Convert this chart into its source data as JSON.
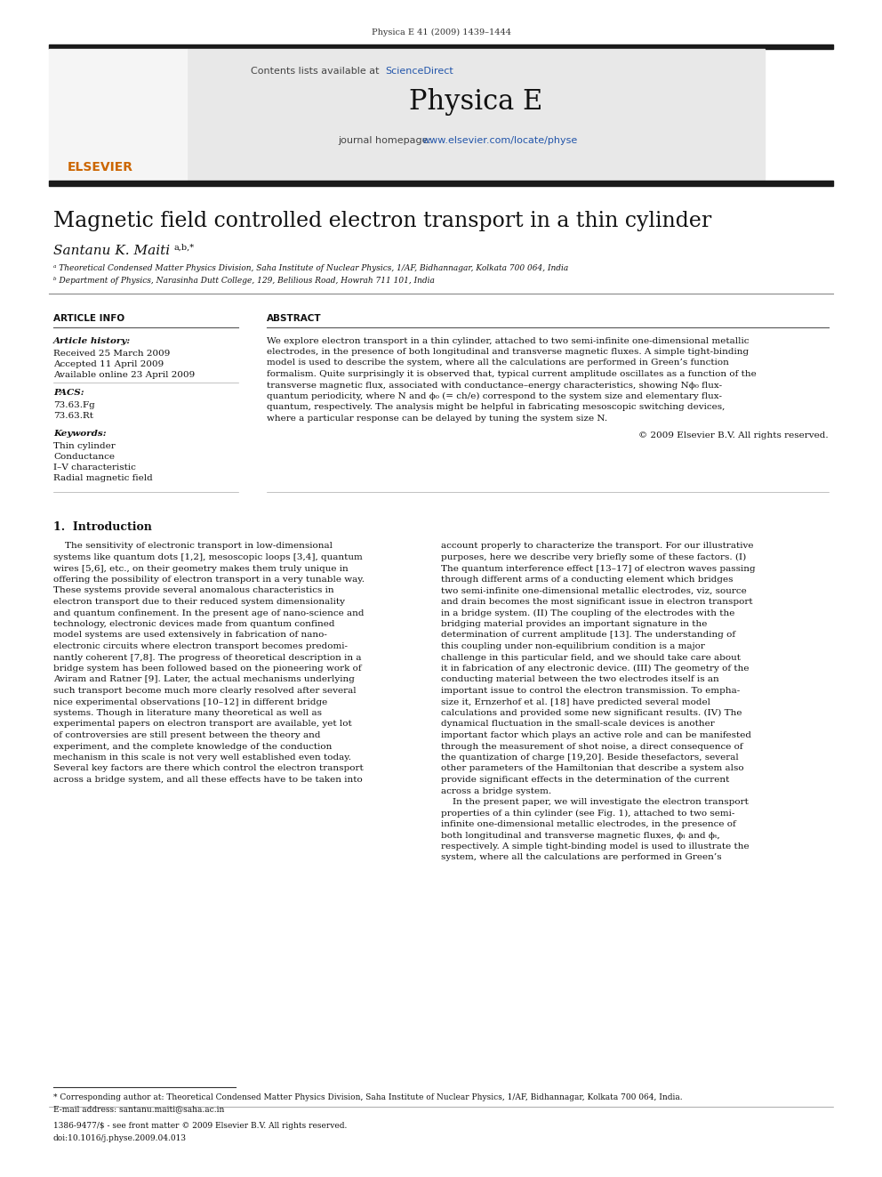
{
  "page_bg": "#ffffff",
  "header_journal": "Physica E 41 (2009) 1439–1444",
  "header_bar_color": "#1a1a1a",
  "banner_bg": "#e8e8e8",
  "banner_text1": "Contents lists available at ",
  "banner_link1": "ScienceDirect",
  "banner_link1_color": "#2255aa",
  "banner_journal_name": "Physica E",
  "banner_url_text": "journal homepage: ",
  "banner_url": "www.elsevier.com/locate/physe",
  "banner_url_color": "#2255aa",
  "title": "Magnetic field controlled electron transport in a thin cylinder",
  "author": "Santanu K. Maiti",
  "author_super": "a,b,*",
  "affil_a": "ᵃ Theoretical Condensed Matter Physics Division, Saha Institute of Nuclear Physics, 1/AF, Bidhannagar, Kolkata 700 064, India",
  "affil_b": "ᵇ Department of Physics, Narasinha Dutt College, 129, Belilious Road, Howrah 711 101, India",
  "section_article_info": "ARTICLE INFO",
  "article_history_label": "Article history:",
  "received": "Received 25 March 2009",
  "accepted": "Accepted 11 April 2009",
  "available": "Available online 23 April 2009",
  "pacs_label": "PACS:",
  "pacs1": "73.63.Fg",
  "pacs2": "73.63.Rt",
  "keywords_label": "Keywords:",
  "kw1": "Thin cylinder",
  "kw2": "Conductance",
  "kw3": "I–V characteristic",
  "kw4": "Radial magnetic field",
  "section_abstract": "ABSTRACT",
  "copyright": "© 2009 Elsevier B.V. All rights reserved.",
  "intro_heading": "1.  Introduction",
  "footnote_corresp": "* Corresponding author at: Theoretical Condensed Matter Physics Division, Saha Institute of Nuclear Physics, 1/AF, Bidhannagar, Kolkata 700 064, India.",
  "footnote_email": "E-mail address: santanu.maiti@saha.ac.in",
  "footnote_issn": "1386-9477/$ - see front matter © 2009 Elsevier B.V. All rights reserved.",
  "footnote_doi": "doi:10.1016/j.physe.2009.04.013",
  "abstract_lines": [
    "We explore electron transport in a thin cylinder, attached to two semi-infinite one-dimensional metallic",
    "electrodes, in the presence of both longitudinal and transverse magnetic fluxes. A simple tight-binding",
    "model is used to describe the system, where all the calculations are performed in Green’s function",
    "formalism. Quite surprisingly it is observed that, typical current amplitude oscillates as a function of the",
    "transverse magnetic flux, associated with conductance–energy characteristics, showing Nϕ₀ flux-",
    "quantum periodicity, where N and ϕ₀ (= ch/e) correspond to the system size and elementary flux-",
    "quantum, respectively. The analysis might be helpful in fabricating mesoscopic switching devices,",
    "where a particular response can be delayed by tuning the system size N."
  ],
  "intro_col1_lines": [
    "    The sensitivity of electronic transport in low-dimensional",
    "systems like quantum dots [1,2], mesoscopic loops [3,4], quantum",
    "wires [5,6], etc., on their geometry makes them truly unique in",
    "offering the possibility of electron transport in a very tunable way.",
    "These systems provide several anomalous characteristics in",
    "electron transport due to their reduced system dimensionality",
    "and quantum confinement. In the present age of nano-science and",
    "technology, electronic devices made from quantum confined",
    "model systems are used extensively in fabrication of nano-",
    "electronic circuits where electron transport becomes predomi-",
    "nantly coherent [7,8]. The progress of theoretical description in a",
    "bridge system has been followed based on the pioneering work of",
    "Aviram and Ratner [9]. Later, the actual mechanisms underlying",
    "such transport become much more clearly resolved after several",
    "nice experimental observations [10–12] in different bridge",
    "systems. Though in literature many theoretical as well as",
    "experimental papers on electron transport are available, yet lot",
    "of controversies are still present between the theory and",
    "experiment, and the complete knowledge of the conduction",
    "mechanism in this scale is not very well established even today.",
    "Several key factors are there which control the electron transport",
    "across a bridge system, and all these effects have to be taken into"
  ],
  "intro_col2_lines": [
    "account properly to characterize the transport. For our illustrative",
    "purposes, here we describe very briefly some of these factors. (I)",
    "The quantum interference effect [13–17] of electron waves passing",
    "through different arms of a conducting element which bridges",
    "two semi-infinite one-dimensional metallic electrodes, viz, source",
    "and drain becomes the most significant issue in electron transport",
    "in a bridge system. (II) The coupling of the electrodes with the",
    "bridging material provides an important signature in the",
    "determination of current amplitude [13]. The understanding of",
    "this coupling under non-equilibrium condition is a major",
    "challenge in this particular field, and we should take care about",
    "it in fabrication of any electronic device. (III) The geometry of the",
    "conducting material between the two electrodes itself is an",
    "important issue to control the electron transmission. To empha-",
    "size it, Ernzerhof et al. [18] have predicted several model",
    "calculations and provided some new significant results. (IV) The",
    "dynamical fluctuation in the small-scale devices is another",
    "important factor which plays an active role and can be manifested",
    "through the measurement of shot noise, a direct consequence of",
    "the quantization of charge [19,20]. Beside thesefactors, several",
    "other parameters of the Hamiltonian that describe a system also",
    "provide significant effects in the determination of the current",
    "across a bridge system.",
    "    In the present paper, we will investigate the electron transport",
    "properties of a thin cylinder (see Fig. 1), attached to two semi-",
    "infinite one-dimensional metallic electrodes, in the presence of",
    "both longitudinal and transverse magnetic fluxes, ϕₗ and ϕₜ,",
    "respectively. A simple tight-binding model is used to illustrate the",
    "system, where all the calculations are performed in Green’s"
  ]
}
